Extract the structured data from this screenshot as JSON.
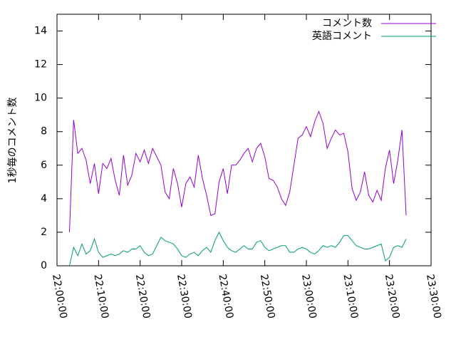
{
  "chart_data": {
    "type": "line",
    "ylabel": "1秒毎のコメント数",
    "x": [
      "22:03:00",
      "22:04:00",
      "22:05:00",
      "22:06:00",
      "22:07:00",
      "22:08:00",
      "22:09:00",
      "22:10:00",
      "22:11:00",
      "22:12:00",
      "22:13:00",
      "22:14:00",
      "22:15:00",
      "22:16:00",
      "22:17:00",
      "22:18:00",
      "22:19:00",
      "22:20:00",
      "22:21:00",
      "22:22:00",
      "22:23:00",
      "22:24:00",
      "22:25:00",
      "22:26:00",
      "22:27:00",
      "22:28:00",
      "22:29:00",
      "22:30:00",
      "22:31:00",
      "22:32:00",
      "22:33:00",
      "22:34:00",
      "22:35:00",
      "22:36:00",
      "22:37:00",
      "22:38:00",
      "22:39:00",
      "22:40:00",
      "22:41:00",
      "22:42:00",
      "22:43:00",
      "22:44:00",
      "22:45:00",
      "22:46:00",
      "22:47:00",
      "22:48:00",
      "22:49:00",
      "22:50:00",
      "22:51:00",
      "22:52:00",
      "22:53:00",
      "22:54:00",
      "22:55:00",
      "22:56:00",
      "22:57:00",
      "22:58:00",
      "22:59:00",
      "23:00:00",
      "23:01:00",
      "23:02:00",
      "23:03:00",
      "23:04:00",
      "23:05:00",
      "23:06:00",
      "23:07:00",
      "23:08:00",
      "23:09:00",
      "23:10:00",
      "23:11:00",
      "23:12:00",
      "23:13:00",
      "23:14:00",
      "23:15:00",
      "23:16:00",
      "23:17:00",
      "23:18:00",
      "23:19:00",
      "23:20:00",
      "23:21:00",
      "23:22:00",
      "23:23:00",
      "23:24:00"
    ],
    "series": [
      {
        "name": "コメント数",
        "color": "#9400d3",
        "values": [
          2.0,
          8.7,
          6.7,
          7.0,
          6.3,
          4.9,
          6.1,
          4.3,
          6.1,
          5.8,
          6.4,
          5.1,
          4.2,
          6.6,
          4.8,
          5.4,
          6.7,
          6.2,
          6.9,
          6.1,
          7.0,
          6.5,
          6.0,
          4.4,
          4.0,
          5.8,
          4.9,
          3.5,
          4.9,
          5.3,
          4.7,
          6.6,
          5.2,
          4.2,
          3.0,
          3.1,
          5.0,
          5.8,
          4.3,
          6.0,
          6.0,
          6.3,
          6.7,
          7.0,
          6.2,
          7.0,
          7.3,
          6.5,
          5.2,
          5.1,
          4.7,
          4.0,
          3.6,
          4.4,
          6.0,
          7.6,
          7.8,
          8.3,
          7.7,
          8.6,
          9.2,
          8.5,
          7.0,
          7.6,
          8.1,
          7.8,
          7.9,
          6.8,
          4.6,
          3.9,
          4.4,
          5.6,
          4.2,
          3.8,
          4.5,
          3.9,
          5.8,
          6.9,
          4.9,
          6.3,
          8.1,
          3.0
        ]
      },
      {
        "name": "英語コメント",
        "color": "#009e73",
        "values": [
          0,
          1.1,
          0.6,
          1.3,
          0.7,
          0.9,
          1.6,
          0.8,
          0.5,
          0.6,
          0.7,
          0.6,
          0.7,
          0.9,
          0.8,
          1.0,
          1.0,
          1.2,
          0.8,
          0.6,
          0.7,
          1.2,
          1.7,
          1.5,
          1.4,
          1.3,
          1.0,
          0.6,
          0.5,
          0.7,
          0.8,
          0.6,
          0.9,
          1.1,
          0.8,
          1.5,
          2.0,
          1.5,
          1.1,
          0.9,
          0.8,
          1.0,
          1.2,
          1.0,
          1.0,
          1.4,
          1.5,
          1.1,
          0.9,
          1.0,
          1.1,
          1.2,
          1.2,
          0.8,
          0.8,
          1.0,
          1.1,
          1.0,
          0.8,
          0.7,
          0.9,
          1.2,
          1.1,
          1.2,
          1.1,
          1.4,
          1.8,
          1.8,
          1.5,
          1.2,
          1.1,
          1.0,
          1.0,
          1.1,
          1.2,
          1.3,
          0.3,
          0.5,
          1.1,
          1.2,
          1.1,
          1.6
        ]
      }
    ],
    "xlim": [
      "22:00:00",
      "23:30:00"
    ],
    "xticks": [
      "22:00:00",
      "22:10:00",
      "22:20:00",
      "22:30:00",
      "22:40:00",
      "22:50:00",
      "23:00:00",
      "23:10:00",
      "23:20:00",
      "23:30:00"
    ],
    "ylim": [
      0,
      15
    ],
    "yticks": [
      0,
      2,
      4,
      6,
      8,
      10,
      12,
      14
    ],
    "grid": false,
    "legend": "top-right"
  }
}
